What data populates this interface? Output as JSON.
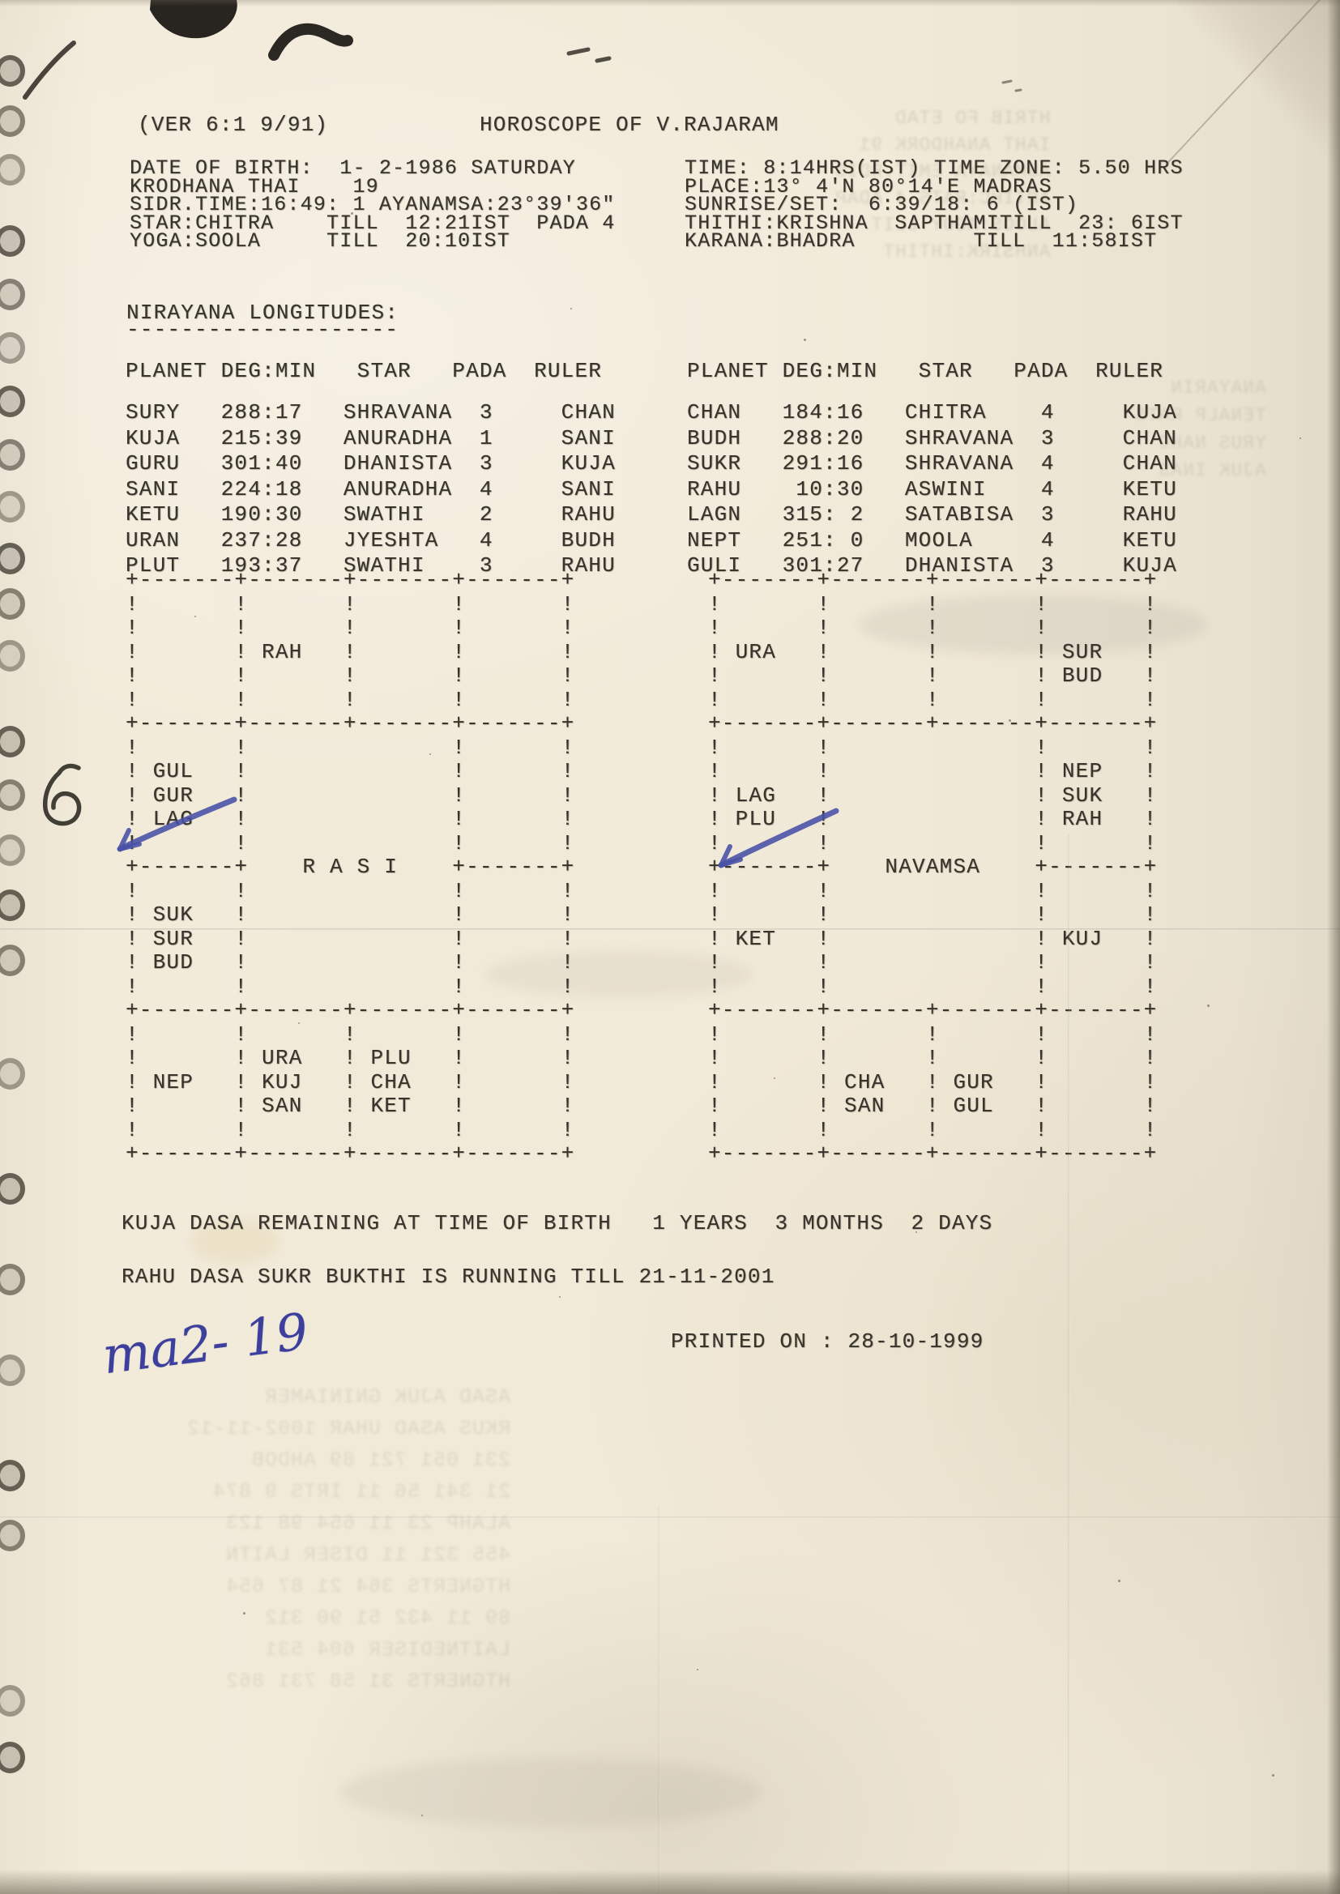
{
  "header": {
    "version": "(VER 6:1 9/91)",
    "title": "HOROSCOPE OF V.RAJARAM"
  },
  "birth_details": {
    "left_lines": [
      "DATE OF BIRTH:  1- 2-1986 SATURDAY",
      "KRODHANA THAI    19",
      "SIDR.TIME:16:49: 1 AYANAMSA:23°39'36\"",
      "STAR:CHITRA    TILL  12:21IST  PADA 4",
      "YOGA:SOOLA     TILL  20:10IST"
    ],
    "right_lines": [
      "TIME: 8:14HRS(IST) TIME ZONE: 5.50 HRS",
      "PLACE:13° 4'N 80°14'E MADRAS",
      "SUNRISE/SET:  6:39/18: 6 (IST)",
      "THITHI:KRISHNA  SAPTHAMITILL  23: 6IST",
      "KARANA:BHADRA         TILL  11:58IST"
    ]
  },
  "nirayana": {
    "heading": "NIRAYANA LONGITUDES:",
    "underline": "--------------------",
    "columns": [
      "PLANET",
      "DEG:MIN",
      "STAR",
      "PADA",
      "RULER"
    ],
    "left_rows": [
      [
        "SURY",
        "288:17",
        "SHRAVANA",
        "3",
        "CHAN"
      ],
      [
        "KUJA",
        "215:39",
        "ANURADHA",
        "1",
        "SANI"
      ],
      [
        "GURU",
        "301:40",
        "DHANISTA",
        "3",
        "KUJA"
      ],
      [
        "SANI",
        "224:18",
        "ANURADHA",
        "4",
        "SANI"
      ],
      [
        "KETU",
        "190:30",
        "SWATHI",
        "2",
        "RAHU"
      ],
      [
        "URAN",
        "237:28",
        "JYESHTA",
        "4",
        "BUDH"
      ],
      [
        "PLUT",
        "193:37",
        "SWATHI",
        "3",
        "RAHU"
      ]
    ],
    "right_rows": [
      [
        "CHAN",
        "184:16",
        "CHITRA",
        "4",
        "KUJA"
      ],
      [
        "BUDH",
        "288:20",
        "SHRAVANA",
        "3",
        "CHAN"
      ],
      [
        "SUKR",
        "291:16",
        "SHRAVANA",
        "4",
        "CHAN"
      ],
      [
        "RAHU",
        "10:30",
        "ASWINI",
        "4",
        "KETU"
      ],
      [
        "LAGN",
        "315: 2",
        "SATABISA",
        "3",
        "RAHU"
      ],
      [
        "NEPT",
        "251: 0",
        "MOOLA",
        "4",
        "KETU"
      ],
      [
        "GULI",
        "301:27",
        "DHANISTA",
        "3",
        "KUJA"
      ]
    ]
  },
  "rasi_chart": {
    "title": "R A S I",
    "ascii_lines": [
      "+-------+-------+-------+-------+",
      "!       !       !       !       !",
      "!       !       !       !       !",
      "!       ! RAH   !       !       !",
      "!       !       !       !       !",
      "!       !       !       !       !",
      "+-------+-------+-------+-------+",
      "!       !               !       !",
      "! GUL   !               !       !",
      "! GUR   !               !       !",
      "! LAG   !               !       !",
      "!       !               !       !",
      "+-------+    R A S I    +-------+",
      "!       !               !       !",
      "! SUK   !               !       !",
      "! SUR   !               !       !",
      "! BUD   !               !       !",
      "!       !               !       !",
      "+-------+-------+-------+-------+",
      "!       !       !       !       !",
      "!       ! URA   ! PLU   !       !",
      "! NEP   ! KUJ   ! CHA   !       !",
      "!       ! SAN   ! KET   !       !",
      "!       !       !       !       !",
      "+-------+-------+-------+-------+"
    ],
    "placements": {
      "row1_col2": [
        "RAH"
      ],
      "row2_col1": [
        "GUL",
        "GUR",
        "LAG"
      ],
      "row3_col1": [
        "SUK",
        "SUR",
        "BUD"
      ],
      "row4_col1": [
        "NEP"
      ],
      "row4_col2": [
        "URA",
        "KUJ",
        "SAN"
      ],
      "row4_col3": [
        "PLU",
        "CHA",
        "KET"
      ]
    }
  },
  "navamsa_chart": {
    "title": "NAVAMSA",
    "ascii_lines": [
      "+-------+-------+-------+-------+",
      "!       !       !       !       !",
      "!       !       !       !       !",
      "! URA   !       !       ! SUR   !",
      "!       !       !       ! BUD   !",
      "!       !       !       !       !",
      "+-------+-------+-------+-------+",
      "!       !               !       !",
      "!       !               ! NEP   !",
      "! LAG   !               ! SUK   !",
      "! PLU   !               ! RAH   !",
      "!       !               !       !",
      "+-------+    NAVAMSA    +-------+",
      "!       !               !       !",
      "!       !               !       !",
      "! KET   !               ! KUJ   !",
      "!       !               !       !",
      "!       !               !       !",
      "+-------+-------+-------+-------+",
      "!       !       !       !       !",
      "!       !       !       !       !",
      "!       ! CHA   ! GUR   !       !",
      "!       ! SAN   ! GUL   !       !",
      "!       !       !       !       !",
      "+-------+-------+-------+-------+"
    ],
    "placements": {
      "row1_col1": [
        "URA"
      ],
      "row1_col4": [
        "SUR",
        "BUD"
      ],
      "row2_col1": [
        "LAG",
        "PLU"
      ],
      "row2_col4": [
        "NEP",
        "SUK",
        "RAH"
      ],
      "row3_col1": [
        "KET"
      ],
      "row3_col4": [
        "KUJ"
      ],
      "row4_col2": [
        "CHA",
        "SAN"
      ],
      "row4_col3": [
        "GUR",
        "GUL"
      ]
    }
  },
  "dasa": {
    "kuja_line": "KUJA DASA REMAINING AT TIME OF BIRTH   1 YEARS  3 MONTHS  2 DAYS",
    "rahu_line": "RAHU DASA SUKR BUKTHI IS RUNNING TILL 21-11-2001"
  },
  "footer": {
    "printed_on": "PRINTED ON : 28-10-1999"
  },
  "annotations": {
    "handwritten_note": "ma2- 19",
    "margin_mark": "6"
  },
  "scan_artifacts": {
    "top_right_lines": [
      "HTRIB FO ETAD",
      "IAHT ANAHDORK 91",
      "ASMANAYA EMIT.RDIS",
      "ARTIHC:RATS 4 ADAP",
      "ALOOS:AGOY LLIT",
      "ANHSIRK:IHTIHT"
    ],
    "right_mid_lines": [
      "ANAYARIN",
      "TENALP RATS",
      "YRUS NAHC",
      "AJUK INAS"
    ],
    "bottom_lines": [
      "ASAD AJUK GNINIAMER",
      "RKUS ASAD UHAR 1002-11-12",
      "231 051 721 89 AHDOB",
      "21 341 56 11 IRTS 9 874",
      "ALAHP 23 11 654 98 123",
      "455 321 11 DISER LAITN",
      "HTGNERTS 364 21 87 654",
      "89 11 432 51 90 312",
      "LAITNEDISER 604 531",
      "HTGNERTS 31 58 731 862"
    ]
  }
}
